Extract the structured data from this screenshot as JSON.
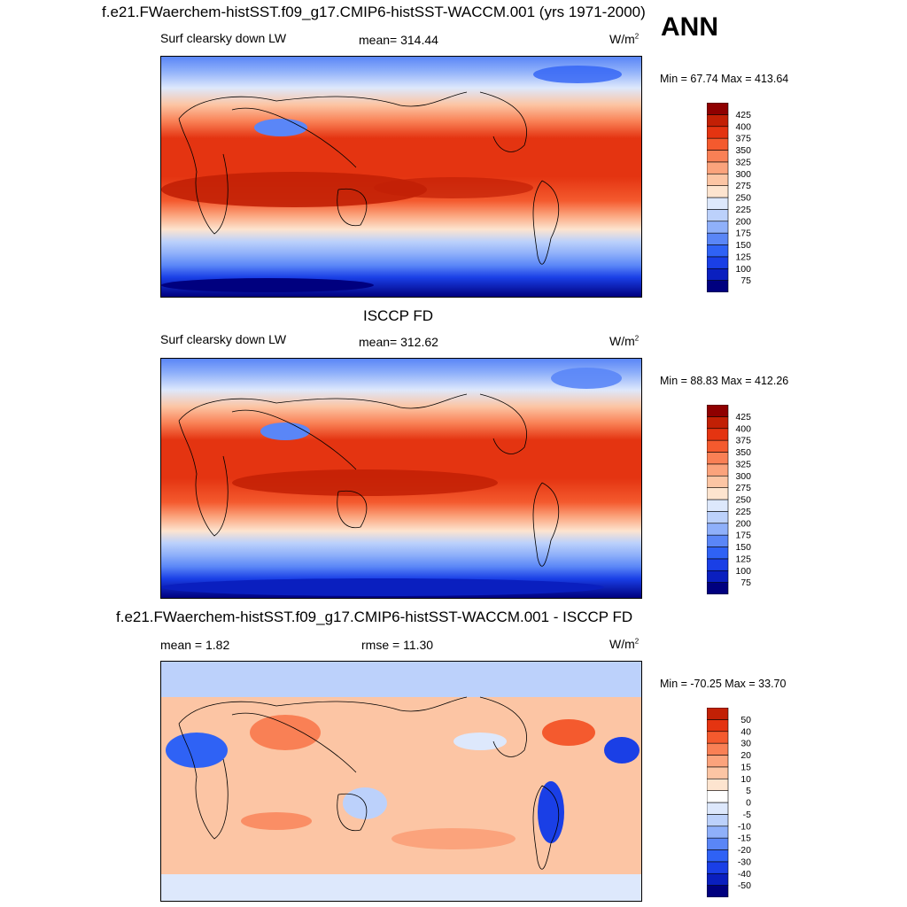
{
  "header": {
    "title": "f.e21.FWaerchem-histSST.f09_g17.CMIP6-histSST-WACCM.001 (yrs 1971-2000)",
    "season": "ANN"
  },
  "colors": {
    "abs_scale": [
      "#00007f",
      "#0a1fbf",
      "#1a3fe6",
      "#2f62f5",
      "#5a86f7",
      "#8fb0fa",
      "#bcd1fb",
      "#dde8fc",
      "#fde4cf",
      "#fcc5a4",
      "#fba37c",
      "#f98055",
      "#f45a2e",
      "#e43411",
      "#c22005",
      "#8f0000"
    ],
    "diff_scale": [
      "#00007f",
      "#0a1fbf",
      "#1a3fe6",
      "#2f62f5",
      "#5a86f7",
      "#8fb0fa",
      "#bcd1fb",
      "#dde8fc",
      "#ffffff",
      "#fde4cf",
      "#fcc5a4",
      "#fba37c",
      "#f98055",
      "#f45a2e",
      "#e43411",
      "#c22005",
      "#8f0000"
    ]
  },
  "chart_data": [
    {
      "type": "heatmap",
      "title": "",
      "variable": "Surf clearsky down LW",
      "mean_label": "mean= 314.44",
      "units": "W/m",
      "units_exp": "2",
      "minmax": "Min =  67.74 Max = 413.64",
      "min": 67.74,
      "max": 413.64,
      "colorbar_levels": [
        "75",
        "100",
        "125",
        "150",
        "175",
        "200",
        "225",
        "250",
        "275",
        "300",
        "325",
        "350",
        "375",
        "400",
        "425"
      ]
    },
    {
      "type": "heatmap",
      "title": "ISCCP FD",
      "variable": "Surf clearsky down LW",
      "mean_label": "mean= 312.62",
      "units": "W/m",
      "units_exp": "2",
      "minmax": "Min =  88.83 Max = 412.26",
      "min": 88.83,
      "max": 412.26,
      "colorbar_levels": [
        "75",
        "100",
        "125",
        "150",
        "175",
        "200",
        "225",
        "250",
        "275",
        "300",
        "325",
        "350",
        "375",
        "400",
        "425"
      ]
    },
    {
      "type": "heatmap",
      "title": "f.e21.FWaerchem-histSST.f09_g17.CMIP6-histSST-WACCM.001 - ISCCP FD",
      "mean_label": "mean =   1.82",
      "rmse_label": "rmse =  11.30",
      "units": "W/m",
      "units_exp": "2",
      "minmax": "Min = -70.25 Max =  33.70",
      "min": -70.25,
      "max": 33.7,
      "colorbar_levels": [
        "-50",
        "-40",
        "-30",
        "-20",
        "-15",
        "-10",
        "-5",
        "0",
        "5",
        "10",
        "15",
        "20",
        "30",
        "40",
        "50"
      ]
    }
  ]
}
